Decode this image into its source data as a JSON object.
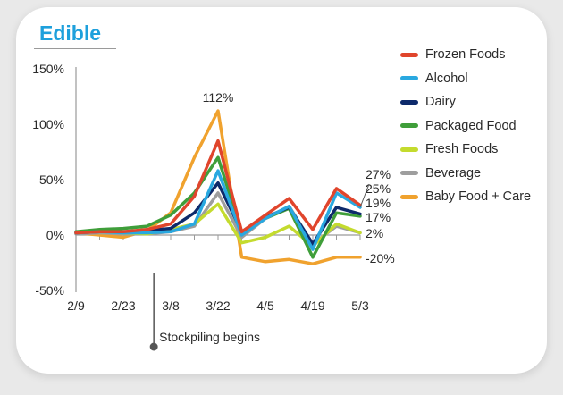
{
  "title": "Edible",
  "chart_data": {
    "type": "line",
    "categories": [
      "2/9",
      "2/16",
      "2/23",
      "3/1",
      "3/8",
      "3/15",
      "3/22",
      "3/29",
      "4/5",
      "4/12",
      "4/19",
      "4/26",
      "5/3"
    ],
    "x_tick_labels": [
      "2/9",
      "2/23",
      "3/8",
      "3/22",
      "4/5",
      "4/19",
      "5/3"
    ],
    "y_tick_labels": [
      "150%",
      "100%",
      "50%",
      "0%",
      "-50%"
    ],
    "ylim": [
      -50,
      150
    ],
    "y_unit": "%",
    "series": [
      {
        "name": "Frozen Foods",
        "color": "#e0452c",
        "values": [
          2,
          3,
          3,
          5,
          10,
          35,
          85,
          3,
          18,
          33,
          5,
          42,
          27
        ],
        "end_label": "27%"
      },
      {
        "name": "Alcohol",
        "color": "#29a8e0",
        "values": [
          2,
          3,
          2,
          2,
          3,
          10,
          58,
          0,
          15,
          26,
          -13,
          38,
          25
        ],
        "end_label": "25%"
      },
      {
        "name": "Dairy",
        "color": "#0d2a6b",
        "values": [
          2,
          3,
          3,
          4,
          6,
          20,
          47,
          3,
          16,
          25,
          -8,
          25,
          19
        ],
        "end_label": "19%"
      },
      {
        "name": "Packaged Food",
        "color": "#3f9e3a",
        "values": [
          3,
          5,
          6,
          8,
          18,
          38,
          70,
          2,
          15,
          24,
          -20,
          20,
          17
        ],
        "end_label": "17%"
      },
      {
        "name": "Fresh Foods",
        "color": "#c4db2e",
        "values": [
          2,
          3,
          2,
          1,
          5,
          10,
          28,
          -7,
          -2,
          8,
          -10,
          10,
          2
        ],
        "end_label": "2%"
      },
      {
        "name": "Beverage",
        "color": "#9e9e9e",
        "values": [
          1,
          2,
          1,
          1,
          3,
          8,
          38,
          -2,
          15,
          26,
          -8,
          8,
          2
        ],
        "end_label": ""
      },
      {
        "name": "Baby Food + Care",
        "color": "#f0a22e",
        "values": [
          2,
          0,
          -2,
          4,
          20,
          70,
          112,
          -20,
          -24,
          -22,
          -26,
          -20,
          -20
        ],
        "end_label": "-20%"
      }
    ],
    "annotations": {
      "peak_label": "112%",
      "event_label": "Stockpiling begins",
      "event_after": "3/1"
    },
    "legend_position": "right",
    "grid": false
  }
}
